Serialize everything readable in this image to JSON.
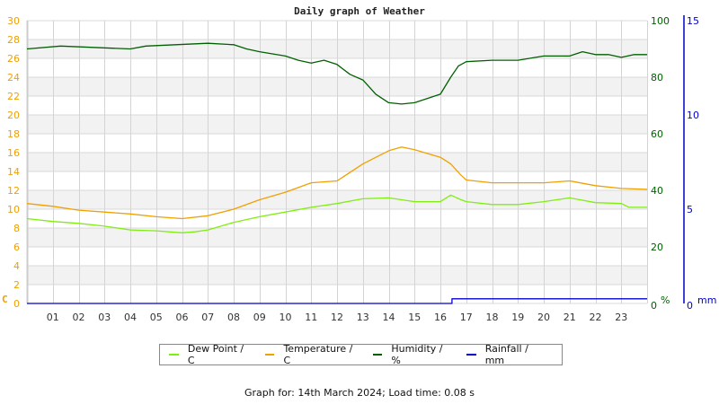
{
  "title": "Daily graph of Weather",
  "footer": "Graph for: 14th March 2024; Load time: 0.08 s",
  "legend": [
    {
      "label": "Dew Point / C",
      "color": "#80ee10"
    },
    {
      "label": "Temperature / C",
      "color": "#f0a000"
    },
    {
      "label": "Humidity / %",
      "color": "#006000"
    },
    {
      "label": "Rainfall / mm",
      "color": "#0000cc"
    }
  ],
  "chart_data": {
    "type": "line",
    "title": "Daily graph of Weather",
    "xlabel": "",
    "x_ticks": [
      "01",
      "02",
      "03",
      "04",
      "05",
      "06",
      "07",
      "08",
      "09",
      "10",
      "11",
      "12",
      "13",
      "14",
      "15",
      "16",
      "17",
      "18",
      "19",
      "20",
      "21",
      "22",
      "23"
    ],
    "xlim": [
      0,
      24
    ],
    "axes": {
      "left": {
        "label": "C",
        "ticks": [
          0,
          2,
          4,
          6,
          8,
          10,
          12,
          14,
          16,
          18,
          20,
          22,
          24,
          26,
          28,
          30
        ],
        "ylim": [
          0,
          30
        ],
        "color": "#f0a000"
      },
      "right1": {
        "label": "%",
        "ticks": [
          0,
          20,
          40,
          60,
          80,
          100
        ],
        "ylim": [
          0,
          100
        ],
        "color": "#006000"
      },
      "right2": {
        "label": "mm",
        "ticks": [
          0,
          5,
          10,
          15
        ],
        "ylim": [
          0,
          15
        ],
        "color": "#0000cc"
      }
    },
    "grid": true,
    "series": [
      {
        "name": "Dew Point / C",
        "axis": "left",
        "color": "#80ee10",
        "x": [
          0,
          1,
          2,
          3,
          4,
          5,
          6,
          6.5,
          7,
          8,
          9,
          10,
          11,
          12,
          13,
          14,
          15,
          16,
          16.4,
          16.8,
          17,
          18,
          19,
          20,
          21,
          22,
          23,
          23.3,
          24
        ],
        "values": [
          9.0,
          8.7,
          8.5,
          8.2,
          7.8,
          7.7,
          7.5,
          7.6,
          7.8,
          8.6,
          9.2,
          9.7,
          10.2,
          10.6,
          11.1,
          11.2,
          10.8,
          10.8,
          11.5,
          11.0,
          10.8,
          10.5,
          10.5,
          10.8,
          11.2,
          10.7,
          10.6,
          10.2,
          10.2
        ]
      },
      {
        "name": "Temperature / C",
        "axis": "left",
        "color": "#f0a000",
        "x": [
          0,
          1,
          2,
          3,
          4,
          5,
          6,
          7,
          8,
          9,
          10,
          11,
          12,
          13,
          14,
          14.5,
          15,
          16,
          16.4,
          16.8,
          17,
          18,
          19,
          20,
          21,
          22,
          23,
          24
        ],
        "values": [
          10.6,
          10.3,
          9.9,
          9.7,
          9.5,
          9.2,
          9.0,
          9.3,
          10.0,
          11.0,
          11.8,
          12.8,
          13.0,
          14.8,
          16.2,
          16.6,
          16.3,
          15.5,
          14.8,
          13.6,
          13.1,
          12.8,
          12.8,
          12.8,
          13.0,
          12.5,
          12.2,
          12.1
        ]
      },
      {
        "name": "Humidity / %",
        "axis": "right1",
        "color": "#006000",
        "x": [
          0,
          1.3,
          4,
          4.6,
          7,
          8,
          8.5,
          9,
          10,
          10.5,
          11,
          11.5,
          12,
          12.5,
          13,
          13.5,
          14,
          14.5,
          15,
          16,
          16.4,
          16.7,
          17,
          18,
          19,
          20,
          21,
          21.5,
          22,
          22.5,
          23,
          23.5,
          24
        ],
        "values": [
          90,
          91,
          90,
          91,
          92,
          91.5,
          90,
          89,
          87.5,
          86,
          85,
          86,
          84.5,
          81,
          79,
          74,
          71,
          70.5,
          71,
          74,
          80,
          84,
          85.5,
          86,
          86,
          87.5,
          87.5,
          89,
          88,
          88,
          87,
          88,
          88
        ]
      },
      {
        "name": "Rainfall / mm",
        "axis": "right2",
        "color": "#0000cc",
        "x": [
          0,
          16.45,
          16.45,
          24
        ],
        "values": [
          0,
          0,
          0.25,
          0.25
        ]
      }
    ]
  }
}
